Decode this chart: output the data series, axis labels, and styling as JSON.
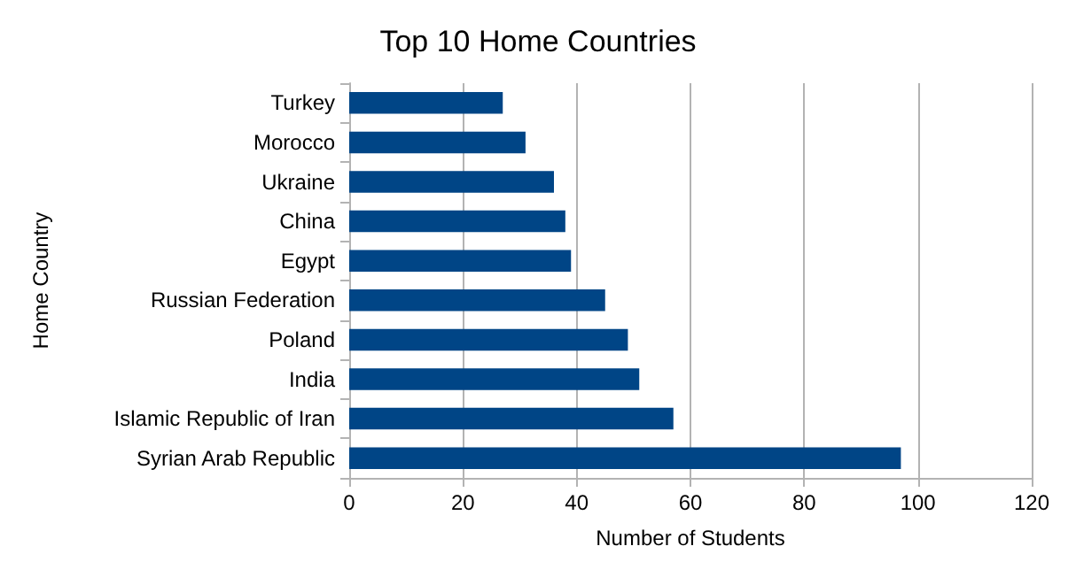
{
  "chart_data": {
    "type": "bar",
    "orientation": "horizontal",
    "title": "Top 10 Home Countries",
    "xlabel": "Number of Students",
    "ylabel": "Home Country",
    "categories": [
      "Turkey",
      "Morocco",
      "Ukraine",
      "China",
      "Egypt",
      "Russian Federation",
      "Poland",
      "India",
      "Islamic Republic of Iran",
      "Syrian Arab Republic"
    ],
    "values": [
      27,
      31,
      36,
      38,
      39,
      45,
      49,
      51,
      57,
      97
    ],
    "color": "#004586",
    "xlim": [
      0,
      120
    ],
    "xticks": [
      0,
      20,
      40,
      60,
      80,
      100,
      120
    ],
    "grid": "x"
  }
}
